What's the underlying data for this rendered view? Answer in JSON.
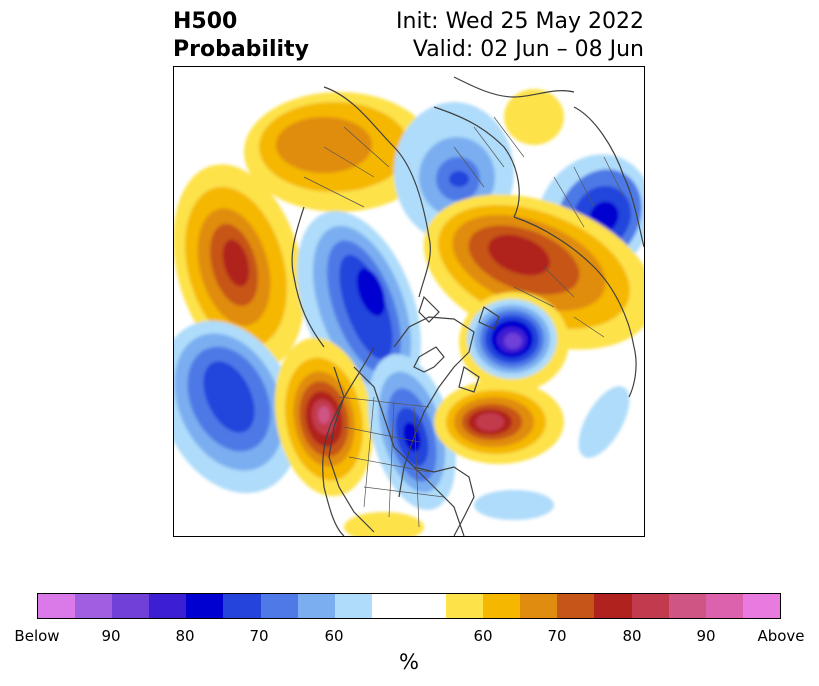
{
  "header": {
    "title_line1": "H500",
    "title_line2": "Probability",
    "init_text": "Init: Wed 25 May 2022",
    "valid_text": "Valid: 02 Jun – 08 Jun"
  },
  "colorbar": {
    "segment_colors": [
      "#d97ae8",
      "#a05ee0",
      "#7040d8",
      "#3c1fd2",
      "#0000d0",
      "#2444dc",
      "#4e79e6",
      "#7aaef0",
      "#aedcfa",
      "#ffffff",
      "#ffffff",
      "#fde24a",
      "#f5b700",
      "#e08c0e",
      "#c65519",
      "#b0221e",
      "#c23a4e",
      "#cf5585",
      "#dc62ad",
      "#e97ae0"
    ],
    "tick_labels": [
      {
        "text": "Below"
      },
      {
        "text": "90"
      },
      {
        "text": "80"
      },
      {
        "text": "70"
      },
      {
        "text": "60"
      },
      {
        "text": "60"
      },
      {
        "text": "70"
      },
      {
        "text": "80"
      },
      {
        "text": "90"
      },
      {
        "text": "Above"
      }
    ],
    "unit": "%"
  }
}
